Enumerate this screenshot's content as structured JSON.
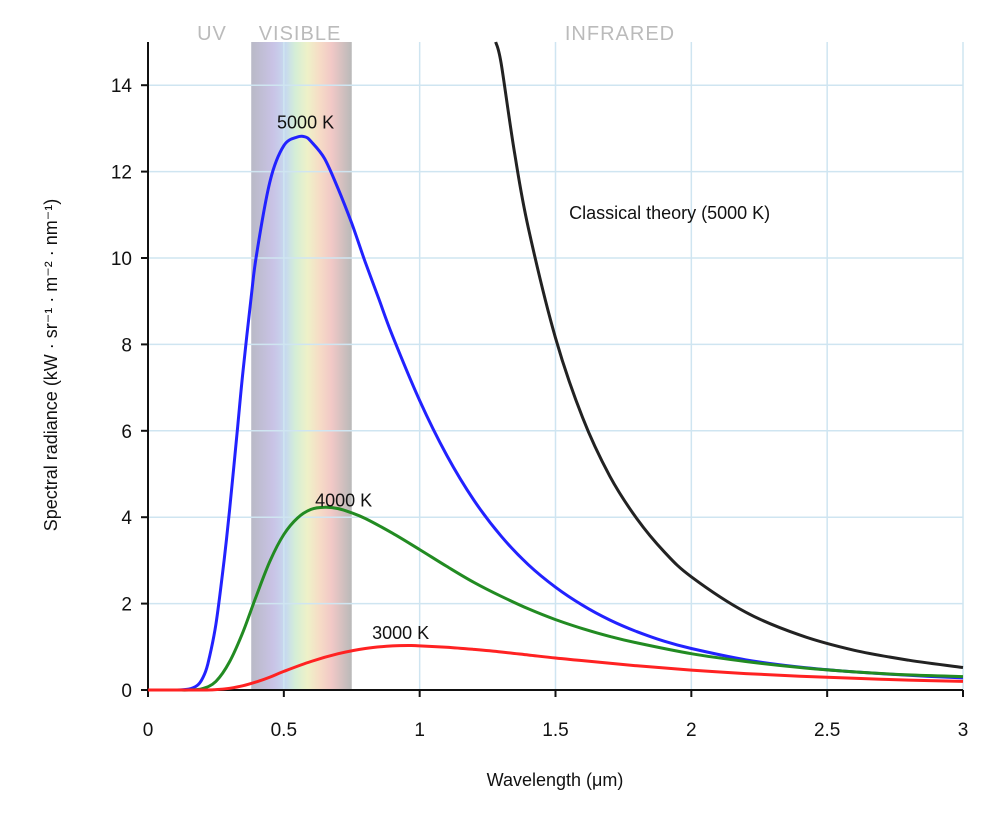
{
  "chart_data": {
    "type": "line",
    "xlabel": "Wavelength (μm)",
    "ylabel": "Spectral radiance (kW · sr⁻¹ · m⁻² · nm⁻¹)",
    "xlim": [
      0,
      3
    ],
    "ylim": [
      0,
      15
    ],
    "x_ticks": [
      "0",
      "0.5",
      "1",
      "1.5",
      "2",
      "2.5",
      "3"
    ],
    "x_tick_values": [
      0,
      0.5,
      1,
      1.5,
      2,
      2.5,
      3
    ],
    "y_ticks": [
      "0",
      "2",
      "4",
      "6",
      "8",
      "10",
      "12",
      "14"
    ],
    "y_tick_values": [
      0,
      2,
      4,
      6,
      8,
      10,
      12,
      14
    ],
    "grid": true,
    "regions": [
      {
        "label": "UV",
        "x_from": 0,
        "x_to": 0.38,
        "color": "#bbbbbb"
      },
      {
        "label": "VISIBLE",
        "x_from": 0.38,
        "x_to": 0.75,
        "color": "#bbbbbb"
      },
      {
        "label": "INFRARED",
        "x_from": 0.75,
        "x_to": 3,
        "color": "#bbbbbb"
      }
    ],
    "visible_band": {
      "x_from": 0.38,
      "x_to": 0.75
    },
    "series": [
      {
        "label": "5000 K",
        "color": "#2222ff",
        "label_at": {
          "x": 0.58,
          "y": 13.0
        },
        "x": [
          0.0,
          0.05,
          0.1,
          0.15,
          0.18,
          0.2,
          0.22,
          0.25,
          0.28,
          0.3,
          0.33,
          0.35,
          0.38,
          0.4,
          0.45,
          0.5,
          0.55,
          0.58,
          0.6,
          0.65,
          0.7,
          0.75,
          0.8,
          0.85,
          0.9,
          1.0,
          1.1,
          1.2,
          1.3,
          1.4,
          1.5,
          1.6,
          1.7,
          1.8,
          1.9,
          2.0,
          2.2,
          2.4,
          2.6,
          2.8,
          3.0
        ],
        "y": [
          0.0,
          0.0,
          0.0,
          0.02,
          0.1,
          0.26,
          0.6,
          1.52,
          3.0,
          4.15,
          6.1,
          7.4,
          9.1,
          10.1,
          11.8,
          12.6,
          12.8,
          12.8,
          12.7,
          12.3,
          11.6,
          10.8,
          9.9,
          9.05,
          8.2,
          6.7,
          5.43,
          4.39,
          3.56,
          2.9,
          2.38,
          1.96,
          1.62,
          1.35,
          1.13,
          0.96,
          0.7,
          0.53,
          0.42,
          0.34,
          0.28
        ]
      },
      {
        "label": "4000 K",
        "color": "#228b22",
        "label_at": {
          "x": 0.72,
          "y": 4.25
        },
        "x": [
          0.0,
          0.1,
          0.15,
          0.2,
          0.25,
          0.3,
          0.35,
          0.4,
          0.45,
          0.5,
          0.55,
          0.6,
          0.65,
          0.7,
          0.75,
          0.8,
          0.9,
          1.0,
          1.1,
          1.2,
          1.3,
          1.4,
          1.5,
          1.6,
          1.7,
          1.8,
          2.0,
          2.2,
          2.4,
          2.6,
          2.8,
          3.0
        ],
        "y": [
          0.0,
          0.0,
          0.0,
          0.03,
          0.2,
          0.65,
          1.35,
          2.2,
          3.0,
          3.6,
          3.98,
          4.18,
          4.23,
          4.2,
          4.1,
          3.97,
          3.63,
          3.25,
          2.86,
          2.49,
          2.17,
          1.88,
          1.63,
          1.42,
          1.24,
          1.09,
          0.84,
          0.66,
          0.52,
          0.42,
          0.35,
          0.31
        ]
      },
      {
        "label": "3000 K",
        "color": "#ff2222",
        "label_at": {
          "x": 0.93,
          "y": 1.18
        },
        "x": [
          0.0,
          0.2,
          0.25,
          0.3,
          0.35,
          0.4,
          0.45,
          0.5,
          0.6,
          0.7,
          0.8,
          0.9,
          0.97,
          1.0,
          1.1,
          1.2,
          1.3,
          1.4,
          1.5,
          1.6,
          1.8,
          2.0,
          2.2,
          2.4,
          2.6,
          2.8,
          3.0
        ],
        "y": [
          0.0,
          0.0,
          0.01,
          0.04,
          0.1,
          0.19,
          0.3,
          0.43,
          0.66,
          0.84,
          0.96,
          1.02,
          1.03,
          1.02,
          0.99,
          0.94,
          0.88,
          0.81,
          0.74,
          0.68,
          0.56,
          0.46,
          0.38,
          0.32,
          0.27,
          0.23,
          0.2
        ]
      },
      {
        "label": "Classical theory (5000 K)",
        "color": "#222222",
        "label_at": {
          "x": 1.55,
          "y": 10.9
        },
        "x": [
          1.28,
          1.3,
          1.35,
          1.4,
          1.5,
          1.6,
          1.7,
          1.8,
          1.9,
          2.0,
          2.2,
          2.4,
          2.6,
          2.8,
          3.0
        ],
        "y": [
          15.0,
          14.5,
          12.4,
          10.7,
          8.15,
          6.3,
          4.95,
          3.96,
          3.2,
          2.62,
          1.8,
          1.27,
          0.92,
          0.69,
          0.52
        ]
      }
    ]
  }
}
